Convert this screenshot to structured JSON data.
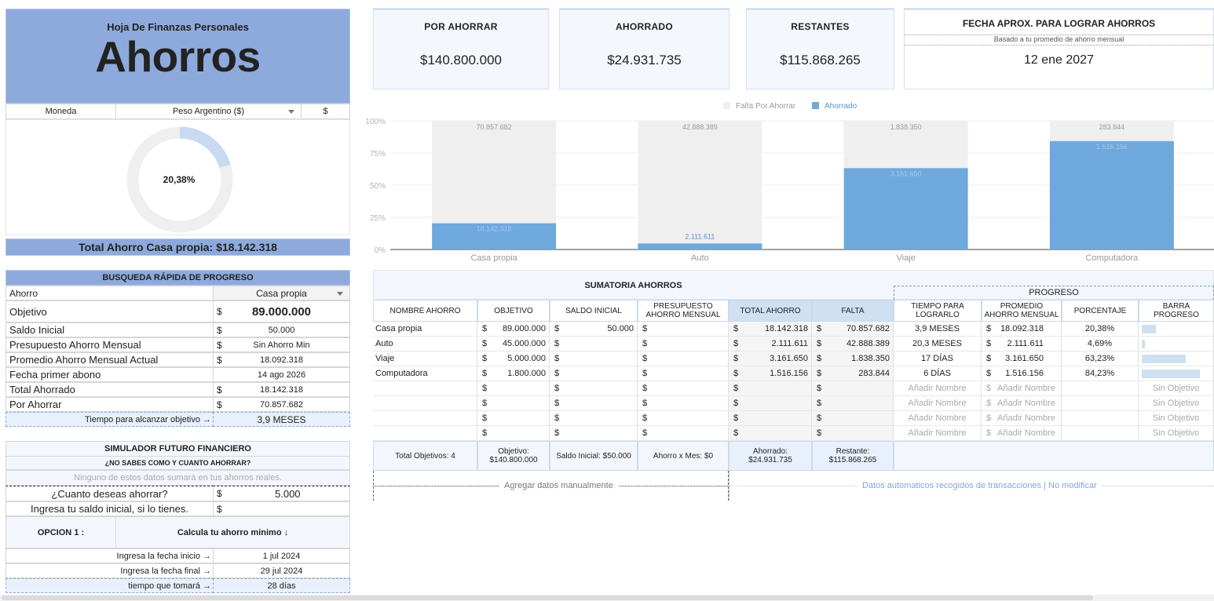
{
  "header": {
    "subtitle": "Hoja De Finanzas Personales",
    "title": "Ahorros"
  },
  "currency": {
    "label": "Moneda",
    "value": "Peso Argentino ($)",
    "symbol": "$"
  },
  "donut": {
    "percent_label": "20,38%",
    "fraction": 0.2038,
    "fill_color": "#c8daf1",
    "track_color": "#efefef"
  },
  "total_banner": "Total Ahorro Casa propia: $18.142.318",
  "kpis": {
    "por_ahorrar": {
      "title": "POR AHORRAR",
      "value": "$140.800.000"
    },
    "ahorrado": {
      "title": "AHORRADO",
      "value": "$24.931.735"
    },
    "restantes": {
      "title": "RESTANTES",
      "value": "$115.868.265"
    },
    "fecha": {
      "title": "FECHA APROX.  PARA LOGRAR AHORROS",
      "note": "Basado a tu promedio de ahorro mensual",
      "value": "12 ene 2027"
    }
  },
  "quick": {
    "title": "BUSQUEDA RÁPIDA DE PROGRESO",
    "selector_label": "Ahorro",
    "selector_value": "Casa propia",
    "rows": [
      {
        "label": "Objetivo",
        "cur": "$",
        "value": "89.000.000"
      },
      {
        "label": "Saldo Inicial",
        "cur": "$",
        "value": "50.000"
      },
      {
        "label": "Presupuesto Ahorro Mensual",
        "cur": "$",
        "value": "Sin Ahorro Min"
      },
      {
        "label": "Promedio Ahorro Mensual Actual",
        "cur": "$",
        "value": "18.092.318"
      },
      {
        "label": "Fecha primer abono",
        "cur": "",
        "value": "14 ago 2026"
      },
      {
        "label": "Total Ahorrado",
        "cur": "$",
        "value": "18.142.318"
      },
      {
        "label": "Por Ahorrar",
        "cur": "$",
        "value": "70.857.682"
      }
    ],
    "time_label": "Tiempo para alcanzar objetivo →",
    "time_value": "3,9 MESES"
  },
  "simulator": {
    "title": "SIMULADOR FUTURO FINANCIERO",
    "question": "¿NO SABES COMO Y CUANTO AHORRAR?",
    "note": "Ninguno de estos datos sumará en tus ahorros reales.",
    "q1_label": "¿Cuanto deseas ahorrar?",
    "q1_cur": "$",
    "q1_value": "5.000",
    "q2_label": "Ingresa tu saldo inicial, si lo tienes.",
    "q2_cur": "$",
    "option_label": "OPCION 1 :",
    "option_text": "Calcula tu ahorro minimo ↓",
    "start_label": "Ingresa la fecha inicio →",
    "start_value": "1 jul 2024",
    "end_label": "Ingresa la fecha final →",
    "end_value": "29 jul 2024",
    "took_label": "tiempo que tomará →",
    "took_value": "28 días"
  },
  "chart_data": {
    "type": "bar",
    "stacked": "percent",
    "categories": [
      "Casa propia",
      "Auto",
      "Viaje",
      "Computadora"
    ],
    "series": [
      {
        "name": "Ahorrado",
        "values": [
          18142318,
          2111611,
          3161650,
          1516156
        ],
        "labels": [
          "18.142.318",
          "2.111.611",
          "3.161.650",
          "1.516.156"
        ],
        "color": "#6fa8dc"
      },
      {
        "name": "Falta Por Ahorrar",
        "values": [
          70857682,
          42888389,
          1838350,
          283844
        ],
        "labels": [
          "70.857.682",
          "42.888.389",
          "1.838.350",
          "283.844"
        ],
        "color": "#efefef"
      }
    ],
    "yticks": [
      "100%",
      "75%",
      "50%",
      "25%",
      "0%"
    ],
    "ylim": [
      0,
      100
    ],
    "legend": [
      "Falta Por Ahorrar",
      "Ahorrado"
    ],
    "legend_position": "top"
  },
  "sum": {
    "title": "SUMATORIA AHORROS",
    "progress_title": "PROGRESO",
    "headers": [
      "NOMBRE AHORRO",
      "OBJETIVO",
      "SALDO INICIAL",
      "PRESUPUESTO AHORRO MENSUAL",
      "TOTAL AHORRO",
      "FALTA",
      "TIEMPO PARA LOGRARLO",
      "PROMEDIO AHORRO MENSUAL",
      "PORCENTAJE",
      "BARRA PROGRESO"
    ],
    "rows": [
      {
        "name": "Casa propia",
        "objetivo": "89.000.000",
        "saldo": "50.000",
        "total": "18.142.318",
        "falta": "70.857.682",
        "tiempo": "3,9 MESES",
        "promedio": "18.092.318",
        "pct": "20,38%",
        "frac": 0.2038
      },
      {
        "name": "Auto",
        "objetivo": "45.000.000",
        "saldo": "",
        "total": "2.111.611",
        "falta": "42.888.389",
        "tiempo": "20,3 MESES",
        "promedio": "2.111.611",
        "pct": "4,69%",
        "frac": 0.0469
      },
      {
        "name": "Viaje",
        "objetivo": "5.000.000",
        "saldo": "",
        "total": "3.161.650",
        "falta": "1.838.350",
        "tiempo": "17 DÍAS",
        "promedio": "3.161.650",
        "pct": "63,23%",
        "frac": 0.6323
      },
      {
        "name": "Computadora",
        "objetivo": "1.800.000",
        "saldo": "",
        "total": "1.516.156",
        "falta": "283.844",
        "tiempo": "6 DÍAS",
        "promedio": "1.516.156",
        "pct": "84,23%",
        "frac": 0.8423
      }
    ],
    "cur": "$",
    "empty_name": "Añadir Nombre",
    "empty_goal": "Sin Objetivo",
    "footer": [
      "Total Objetivos: 4",
      "Objetivo:\n$140.800.000",
      "Saldo Inicial: $50.000",
      "Ahorro x Mes: $0",
      "Ahorrado:\n$24.931.735",
      "Restante:\n$115.868.265"
    ],
    "manual_note": "Agregar datos manualmente",
    "auto_note": "Datos automaticos recogidos de transacciones | No modificar"
  }
}
